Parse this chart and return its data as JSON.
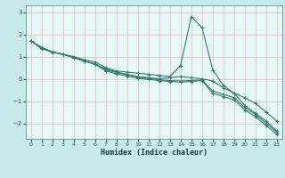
{
  "title": "",
  "xlabel": "Humidex (Indice chaleur)",
  "ylabel": "",
  "bg_color": "#c8eaea",
  "plot_bg_color": "#e8f8f8",
  "grid_color": "#d8b8b8",
  "line_color": "#2e7d6e",
  "x": [
    0,
    1,
    2,
    3,
    4,
    5,
    6,
    7,
    8,
    9,
    10,
    11,
    12,
    13,
    14,
    15,
    16,
    17,
    18,
    19,
    20,
    21,
    22,
    23
  ],
  "lines": [
    [
      1.7,
      1.35,
      1.2,
      1.1,
      1.0,
      0.85,
      0.75,
      0.5,
      0.35,
      0.3,
      0.25,
      0.2,
      0.15,
      0.1,
      0.6,
      2.8,
      2.3,
      0.4,
      -0.3,
      -0.65,
      -1.2,
      -1.55,
      -1.9,
      -2.35
    ],
    [
      1.7,
      1.4,
      1.2,
      1.1,
      0.95,
      0.8,
      0.65,
      0.45,
      0.3,
      0.2,
      0.1,
      0.05,
      0.0,
      0.05,
      0.1,
      0.05,
      0.0,
      -0.1,
      -0.4,
      -0.65,
      -0.85,
      -1.1,
      -1.5,
      -1.9
    ],
    [
      1.7,
      1.4,
      1.2,
      1.1,
      0.95,
      0.8,
      0.65,
      0.4,
      0.28,
      0.18,
      0.08,
      0.02,
      -0.05,
      -0.08,
      -0.1,
      -0.08,
      -0.05,
      -0.55,
      -0.7,
      -0.85,
      -1.3,
      -1.6,
      -2.0,
      -2.4
    ],
    [
      1.7,
      1.4,
      1.2,
      1.1,
      0.95,
      0.8,
      0.65,
      0.35,
      0.22,
      0.12,
      0.02,
      -0.03,
      -0.08,
      -0.12,
      -0.15,
      -0.12,
      -0.08,
      -0.65,
      -0.8,
      -0.95,
      -1.4,
      -1.7,
      -2.1,
      -2.5
    ]
  ],
  "yticks": [
    -2,
    -1,
    0,
    1,
    2,
    3
  ],
  "xticks": [
    0,
    1,
    2,
    3,
    4,
    5,
    6,
    7,
    8,
    9,
    10,
    11,
    12,
    13,
    14,
    15,
    16,
    17,
    18,
    19,
    20,
    21,
    22,
    23
  ],
  "ylim": [
    -2.7,
    3.3
  ],
  "xlim": [
    -0.5,
    23.5
  ],
  "marker": "+",
  "markersize": 3,
  "linewidth": 0.8
}
